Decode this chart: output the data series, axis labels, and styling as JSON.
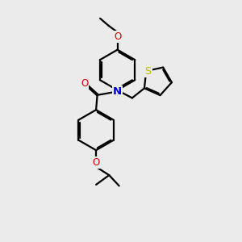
{
  "background_color": "#ebebeb",
  "bond_color": "#000000",
  "N_color": "#0000cc",
  "O_color": "#dd0000",
  "S_color": "#bbbb00",
  "line_width": 1.6,
  "dbo": 0.055,
  "figsize": [
    3.0,
    3.0
  ],
  "dpi": 100,
  "methoxy_label": "O",
  "methoxy_C_label": "",
  "isopropoxy_O_label": "O",
  "N_label": "N",
  "O_carbonyl_label": "O",
  "S_label": "S"
}
